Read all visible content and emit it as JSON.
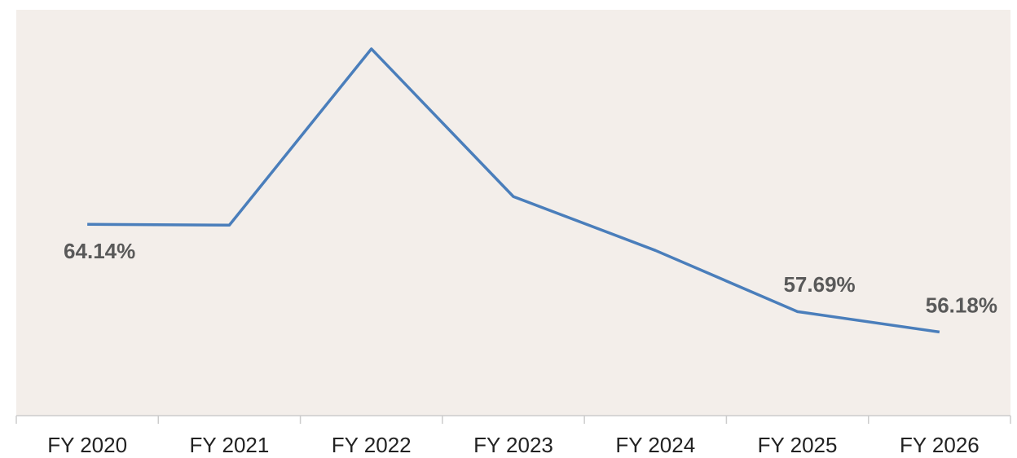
{
  "chart_data": {
    "type": "line",
    "categories": [
      "FY 2020",
      "FY 2021",
      "FY 2022",
      "FY 2023",
      "FY 2024",
      "FY 2025",
      "FY 2026"
    ],
    "series": [
      {
        "color": "#4a7ebb",
        "values": [
          64.14,
          64.08,
          77.11,
          66.19,
          62.21,
          57.69,
          56.18
        ],
        "value_labels": [
          "64.14%",
          null,
          null,
          null,
          null,
          "57.69%",
          "56.18%"
        ]
      }
    ],
    "ylim": [
      50,
      80
    ]
  }
}
